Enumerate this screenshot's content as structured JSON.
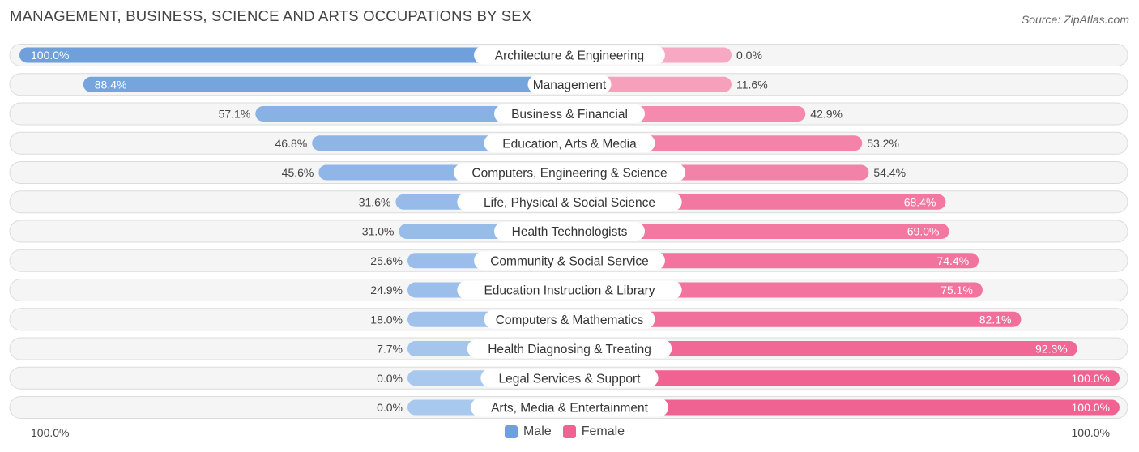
{
  "chart_data": {
    "type": "bar",
    "orientation": "horizontal-diverging",
    "title": "MANAGEMENT, BUSINESS, SCIENCE AND ARTS OCCUPATIONS BY SEX",
    "source": "Source: ZipAtlas.com",
    "categories": [
      "Architecture & Engineering",
      "Management",
      "Business & Financial",
      "Education, Arts & Media",
      "Computers, Engineering & Science",
      "Life, Physical & Social Science",
      "Health Technologists",
      "Community & Social Service",
      "Education Instruction & Library",
      "Computers & Mathematics",
      "Health Diagnosing & Treating",
      "Legal Services & Support",
      "Arts, Media & Entertainment"
    ],
    "series": [
      {
        "name": "Male",
        "values": [
          100.0,
          88.4,
          57.1,
          46.8,
          45.6,
          31.6,
          31.0,
          25.6,
          24.9,
          18.0,
          7.7,
          0.0,
          0.0
        ],
        "labels": [
          "100.0%",
          "88.4%",
          "57.1%",
          "46.8%",
          "45.6%",
          "31.6%",
          "31.0%",
          "25.6%",
          "24.9%",
          "18.0%",
          "7.7%",
          "0.0%",
          "0.0%"
        ]
      },
      {
        "name": "Female",
        "values": [
          0.0,
          11.6,
          42.9,
          53.2,
          54.4,
          68.4,
          69.0,
          74.4,
          75.1,
          82.1,
          92.3,
          100.0,
          100.0
        ],
        "labels": [
          "0.0%",
          "11.6%",
          "42.9%",
          "53.2%",
          "54.4%",
          "68.4%",
          "69.0%",
          "74.4%",
          "75.1%",
          "82.1%",
          "92.3%",
          "100.0%",
          "100.0%"
        ]
      }
    ],
    "xlim": [
      -100,
      100
    ],
    "axis_left_label": "100.0%",
    "axis_right_label": "100.0%",
    "legend_position": "bottom-center",
    "colors": {
      "male": "#6fa0dc",
      "male_light": "#a9c8ee",
      "female": "#f06292",
      "female_light": "#f7a8c2"
    }
  }
}
